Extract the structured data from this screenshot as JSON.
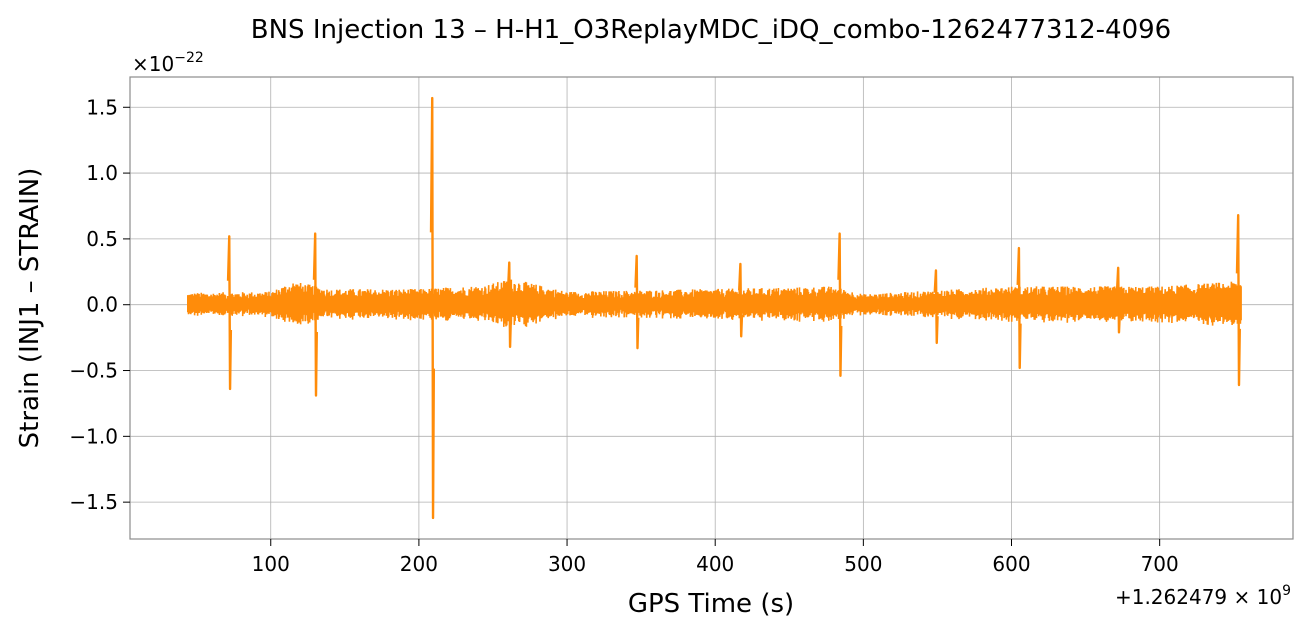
{
  "chart_data": {
    "type": "line",
    "title": "BNS Injection 13 – H-H1_O3ReplayMDC_iDQ_combo-1262477312-4096",
    "xlabel": "GPS Time (s)",
    "ylabel": "Strain (INJ1 – STRAIN)",
    "x_offset_label": "+1.262479×10^9",
    "y_scale_label": "×10^−22",
    "xlim": [
      5,
      790
    ],
    "ylim": [
      -1.78,
      1.73
    ],
    "grid": true,
    "legend": "none",
    "color": "#ff8c0a",
    "x_ticks": [
      100,
      200,
      300,
      400,
      500,
      600,
      700
    ],
    "x_tick_labels": [
      "100",
      "200",
      "300",
      "400",
      "500",
      "600",
      "700"
    ],
    "y_ticks": [
      -1.5,
      -1.0,
      -0.5,
      0.0,
      0.5,
      1.0,
      1.5
    ],
    "y_tick_labels": [
      "−1.5",
      "−1.0",
      "−0.5",
      "0.0",
      "0.5",
      "1.0",
      "1.5"
    ],
    "series": [
      {
        "x_range": [
          44,
          755
        ],
        "noise_envelope": [
          [
            44,
            0.09
          ],
          [
            100,
            0.1
          ],
          [
            115,
            0.18
          ],
          [
            140,
            0.12
          ],
          [
            200,
            0.12
          ],
          [
            245,
            0.15
          ],
          [
            262,
            0.2
          ],
          [
            300,
            0.1
          ],
          [
            400,
            0.12
          ],
          [
            480,
            0.14
          ],
          [
            500,
            0.08
          ],
          [
            600,
            0.14
          ],
          [
            700,
            0.14
          ],
          [
            755,
            0.18
          ]
        ],
        "spikes": [
          {
            "x": 72,
            "max": 0.52,
            "min": -0.64
          },
          {
            "x": 130,
            "max": 0.54,
            "min": -0.69
          },
          {
            "x": 209,
            "max": 1.57,
            "min": -1.62
          },
          {
            "x": 261,
            "max": 0.32,
            "min": -0.32
          },
          {
            "x": 347,
            "max": 0.37,
            "min": -0.33
          },
          {
            "x": 417,
            "max": 0.31,
            "min": -0.24
          },
          {
            "x": 484,
            "max": 0.54,
            "min": -0.54
          },
          {
            "x": 549,
            "max": 0.26,
            "min": -0.29
          },
          {
            "x": 605,
            "max": 0.43,
            "min": -0.48
          },
          {
            "x": 672,
            "max": 0.28,
            "min": -0.21
          },
          {
            "x": 753,
            "max": 0.68,
            "min": -0.61
          }
        ]
      }
    ]
  }
}
